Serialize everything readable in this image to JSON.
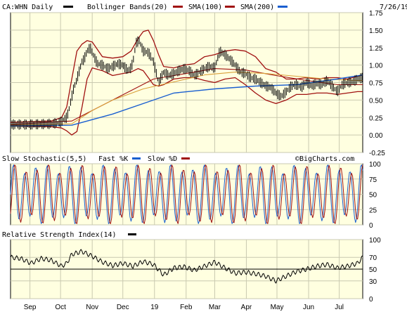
{
  "colors": {
    "panel_bg": "#ffffe0",
    "page_bg": "#ffffff",
    "price": "#000000",
    "bollinger": "#a01010",
    "sma100": "#a01010",
    "sma200": "#d9a03a",
    "sma_long": "#1a5fd0",
    "stoch_fast": "#1a5fd0",
    "stoch_slow": "#a01010",
    "rsi": "#000000",
    "grid": "#c9c9b0"
  },
  "header": {
    "ticker": "CA:WHN Daily",
    "bollinger": "Bollinger Bands(20)",
    "sma100": "SMA(100)",
    "sma200": "SMA(200)",
    "date": "7/26/19"
  },
  "stoch_header": {
    "title": "Slow Stochastic(5,5)",
    "fast": "Fast %K",
    "slow": "Slow %D"
  },
  "rsi_header": {
    "title": "Relative Strength Index(14)"
  },
  "watermark": "©BigCharts.com",
  "chart_data": [
    {
      "type": "line",
      "title": "CA:WHN Daily",
      "y_ticks": [
        "1.75",
        "1.50",
        "1.25",
        "1.00",
        "0.75",
        "0.50",
        "0.25",
        "0.00",
        "-0.25"
      ],
      "ylim": [
        -0.25,
        1.75
      ],
      "x_ticks": [
        "Sep",
        "Oct",
        "Nov",
        "Dec",
        "19",
        "Feb",
        "Mar",
        "Apr",
        "May",
        "Jun",
        "Jul"
      ],
      "x_tick_days": [
        19,
        49,
        80,
        110,
        141,
        172,
        200,
        231,
        261,
        292,
        322
      ],
      "x_range_days": [
        0,
        345
      ],
      "grid": true,
      "series": [
        {
          "name": "CA:WHN Daily",
          "x": [
            0,
            20,
            40,
            45,
            50,
            52,
            55,
            57,
            60,
            62,
            64,
            66,
            68,
            70,
            72,
            75,
            78,
            80,
            85,
            90,
            95,
            100,
            105,
            110,
            115,
            118,
            120,
            123,
            126,
            130,
            135,
            140,
            145,
            150,
            155,
            160,
            165,
            170,
            175,
            180,
            185,
            190,
            195,
            200,
            205,
            210,
            215,
            220,
            225,
            230,
            235,
            240,
            245,
            250,
            255,
            260,
            265,
            270,
            275,
            280,
            285,
            290,
            295,
            300,
            305,
            310,
            315,
            320,
            325,
            330,
            335,
            340,
            345
          ],
          "values": [
            0.15,
            0.15,
            0.16,
            0.17,
            0.19,
            0.22,
            0.25,
            0.35,
            0.55,
            0.68,
            0.75,
            0.85,
            0.95,
            1.05,
            1.08,
            1.2,
            1.25,
            1.18,
            1.02,
            1.0,
            0.95,
            0.98,
            1.02,
            1.0,
            0.92,
            0.96,
            1.05,
            1.32,
            1.35,
            1.2,
            1.18,
            1.05,
            0.75,
            0.9,
            0.85,
            0.88,
            0.92,
            0.95,
            0.92,
            0.85,
            0.9,
            0.95,
            0.98,
            0.96,
            1.2,
            1.15,
            1.08,
            1.0,
            0.9,
            0.88,
            0.82,
            0.8,
            0.75,
            0.7,
            0.68,
            0.6,
            0.55,
            0.62,
            0.7,
            0.72,
            0.68,
            0.76,
            0.7,
            0.74,
            0.72,
            0.78,
            0.7,
            0.62,
            0.72,
            0.75,
            0.76,
            0.8,
            0.82
          ]
        },
        {
          "name": "Bollinger Bands(20)",
          "x": [
            0,
            40,
            50,
            55,
            60,
            65,
            70,
            75,
            80,
            90,
            100,
            110,
            118,
            125,
            130,
            135,
            140,
            145,
            150,
            160,
            170,
            180,
            190,
            200,
            210,
            220,
            230,
            240,
            250,
            260,
            270,
            280,
            290,
            300,
            310,
            320,
            330,
            340,
            345
          ],
          "upper": [
            0.18,
            0.2,
            0.25,
            0.4,
            0.8,
            1.2,
            1.3,
            1.35,
            1.33,
            1.12,
            1.1,
            1.12,
            1.2,
            1.38,
            1.48,
            1.5,
            1.35,
            1.15,
            0.98,
            0.96,
            1.0,
            1.02,
            1.12,
            1.15,
            1.2,
            1.22,
            1.2,
            1.12,
            0.95,
            0.9,
            0.8,
            0.8,
            0.82,
            0.8,
            0.82,
            0.82,
            0.8,
            0.84,
            0.86
          ],
          "lower": [
            0.13,
            0.12,
            0.1,
            0.06,
            0.0,
            0.05,
            0.4,
            0.8,
            0.96,
            0.92,
            0.85,
            0.88,
            0.9,
            0.95,
            0.92,
            0.82,
            0.72,
            0.7,
            0.72,
            0.8,
            0.82,
            0.82,
            0.78,
            0.75,
            0.8,
            0.82,
            0.72,
            0.6,
            0.5,
            0.45,
            0.5,
            0.58,
            0.58,
            0.6,
            0.6,
            0.58,
            0.6,
            0.62,
            0.62
          ]
        },
        {
          "name": "SMA(100)",
          "x": [
            0,
            60,
            100,
            140,
            180,
            200,
            230,
            260,
            290,
            320,
            345
          ],
          "values": [
            0.15,
            0.2,
            0.5,
            0.8,
            0.9,
            0.95,
            0.93,
            0.85,
            0.78,
            0.72,
            0.72
          ]
        },
        {
          "name": "SMA(200)",
          "x": [
            0,
            60,
            80,
            100,
            130,
            160,
            190,
            220,
            250,
            280,
            310,
            340,
            345
          ],
          "values": [
            0.14,
            0.16,
            0.35,
            0.5,
            0.66,
            0.76,
            0.86,
            0.9,
            0.88,
            0.84,
            0.8,
            0.78,
            0.78
          ]
        },
        {
          "name": "",
          "x": [
            0,
            60,
            100,
            140,
            160,
            200,
            240,
            280,
            320,
            345
          ],
          "values": [
            0.13,
            0.14,
            0.3,
            0.5,
            0.6,
            0.66,
            0.7,
            0.72,
            0.8,
            0.86
          ]
        }
      ]
    },
    {
      "type": "line",
      "title": "Slow Stochastic(5,5)",
      "y_ticks": [
        "100",
        "75",
        "50",
        "25",
        "0"
      ],
      "ylim": [
        0,
        100
      ],
      "series": [
        {
          "name": "Fast %K",
          "period_days": 11,
          "phase": 0
        },
        {
          "name": "Slow %D",
          "period_days": 11,
          "phase": 1.5
        }
      ]
    },
    {
      "type": "line",
      "title": "Relative Strength Index(14)",
      "y_ticks": [
        "100",
        "70",
        "50",
        "30",
        "0"
      ],
      "ylim": [
        0,
        100
      ],
      "reference_line": 50,
      "series": [
        {
          "name": "Relative Strength Index(14)",
          "x": [
            0,
            10,
            20,
            30,
            40,
            50,
            55,
            60,
            70,
            80,
            90,
            100,
            110,
            120,
            130,
            140,
            150,
            160,
            170,
            180,
            190,
            200,
            210,
            220,
            230,
            240,
            250,
            260,
            270,
            280,
            290,
            300,
            310,
            320,
            330,
            340,
            345
          ],
          "values": [
            70,
            68,
            60,
            68,
            65,
            55,
            60,
            75,
            80,
            72,
            62,
            56,
            60,
            55,
            63,
            58,
            40,
            52,
            54,
            48,
            55,
            62,
            52,
            43,
            45,
            42,
            38,
            30,
            38,
            46,
            50,
            55,
            58,
            52,
            55,
            60,
            70
          ]
        }
      ]
    }
  ]
}
